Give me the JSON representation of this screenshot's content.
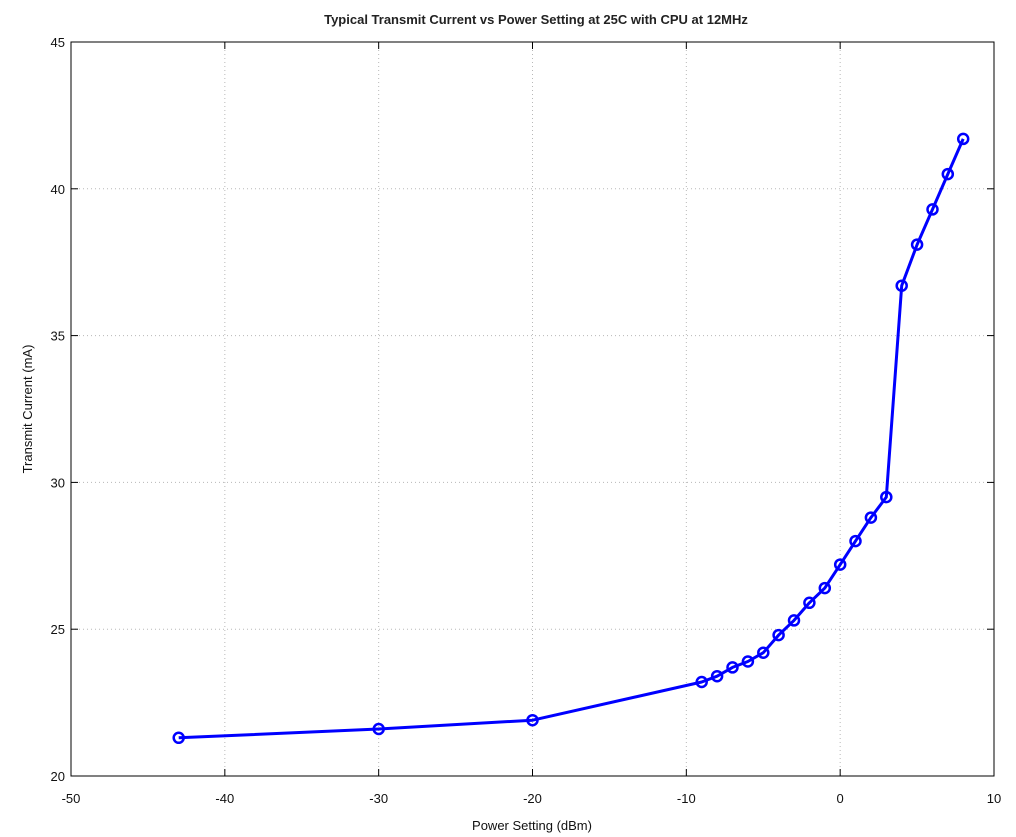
{
  "chart_data": {
    "type": "line",
    "title": "Typical Transmit Current vs Power Setting at 25C with CPU at 12MHz",
    "xlabel": "Power Setting (dBm)",
    "ylabel": "Transmit Current (mA)",
    "xlim": [
      -50,
      10
    ],
    "ylim": [
      20,
      45
    ],
    "xticks": [
      -50,
      -40,
      -30,
      -20,
      -10,
      0,
      10
    ],
    "yticks": [
      20,
      25,
      30,
      35,
      40,
      45
    ],
    "grid": true,
    "marker": "circle",
    "color": "#0000ff",
    "series": [
      {
        "x": [
          -43,
          -30,
          -20,
          -9,
          -8,
          -7,
          -6,
          -5,
          -4,
          -3,
          -2,
          -1,
          0,
          1,
          2,
          3,
          4,
          5,
          6,
          7,
          8
        ],
        "y": [
          21.3,
          21.6,
          21.9,
          23.2,
          23.4,
          23.7,
          23.9,
          24.2,
          24.8,
          25.3,
          25.9,
          26.4,
          27.2,
          28.0,
          28.8,
          29.5,
          36.7,
          38.1,
          39.3,
          40.5,
          41.7
        ]
      }
    ]
  }
}
